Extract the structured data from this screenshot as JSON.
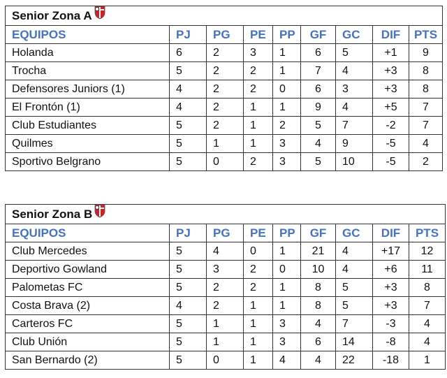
{
  "headers": [
    "EQUIPOS",
    "PJ",
    "PG",
    "PE",
    "PP",
    "GF",
    "GC",
    "DIF",
    "PTS"
  ],
  "colors": {
    "header": "#4472C4",
    "logo_red": "#d0202a"
  },
  "tables": [
    {
      "title": "Senior Zona A",
      "rows": [
        [
          "Holanda",
          "6",
          "2",
          "3",
          "1",
          "6",
          "5",
          "+1",
          "9"
        ],
        [
          "Trocha",
          "5",
          "2",
          "2",
          "1",
          "7",
          "4",
          "+3",
          "8"
        ],
        [
          "Defensores Juniors (1)",
          "4",
          "2",
          "2",
          "0",
          "6",
          "3",
          "+3",
          "8"
        ],
        [
          "El Frontón (1)",
          "4",
          "2",
          "1",
          "1",
          "9",
          "4",
          "+5",
          "7"
        ],
        [
          "Club Estudiantes",
          "5",
          "2",
          "1",
          "2",
          "5",
          "7",
          "-2",
          "7"
        ],
        [
          "Quilmes",
          "5",
          "1",
          "1",
          "3",
          "4",
          "9",
          "-5",
          "4"
        ],
        [
          "Sportivo Belgrano",
          "5",
          "0",
          "2",
          "3",
          "5",
          "10",
          "-5",
          "2"
        ]
      ]
    },
    {
      "title": "Senior Zona B",
      "rows": [
        [
          "Club Mercedes",
          "5",
          "4",
          "0",
          "1",
          "21",
          "4",
          "+17",
          "12"
        ],
        [
          "Deportivo Gowland",
          "5",
          "3",
          "2",
          "0",
          "10",
          "4",
          "+6",
          "11"
        ],
        [
          "Palometas FC",
          "5",
          "2",
          "2",
          "1",
          "8",
          "5",
          "+3",
          "8"
        ],
        [
          "Costa Brava (2)",
          "4",
          "2",
          "1",
          "1",
          "8",
          "5",
          "+3",
          "7"
        ],
        [
          "Carteros FC",
          "5",
          "1",
          "1",
          "3",
          "4",
          "7",
          "-3",
          "4"
        ],
        [
          "Club Unión",
          "5",
          "1",
          "1",
          "3",
          "6",
          "14",
          "-8",
          "4"
        ],
        [
          "San Bernardo (2)",
          "5",
          "0",
          "1",
          "4",
          "4",
          "22",
          "-18",
          "1"
        ]
      ]
    }
  ]
}
